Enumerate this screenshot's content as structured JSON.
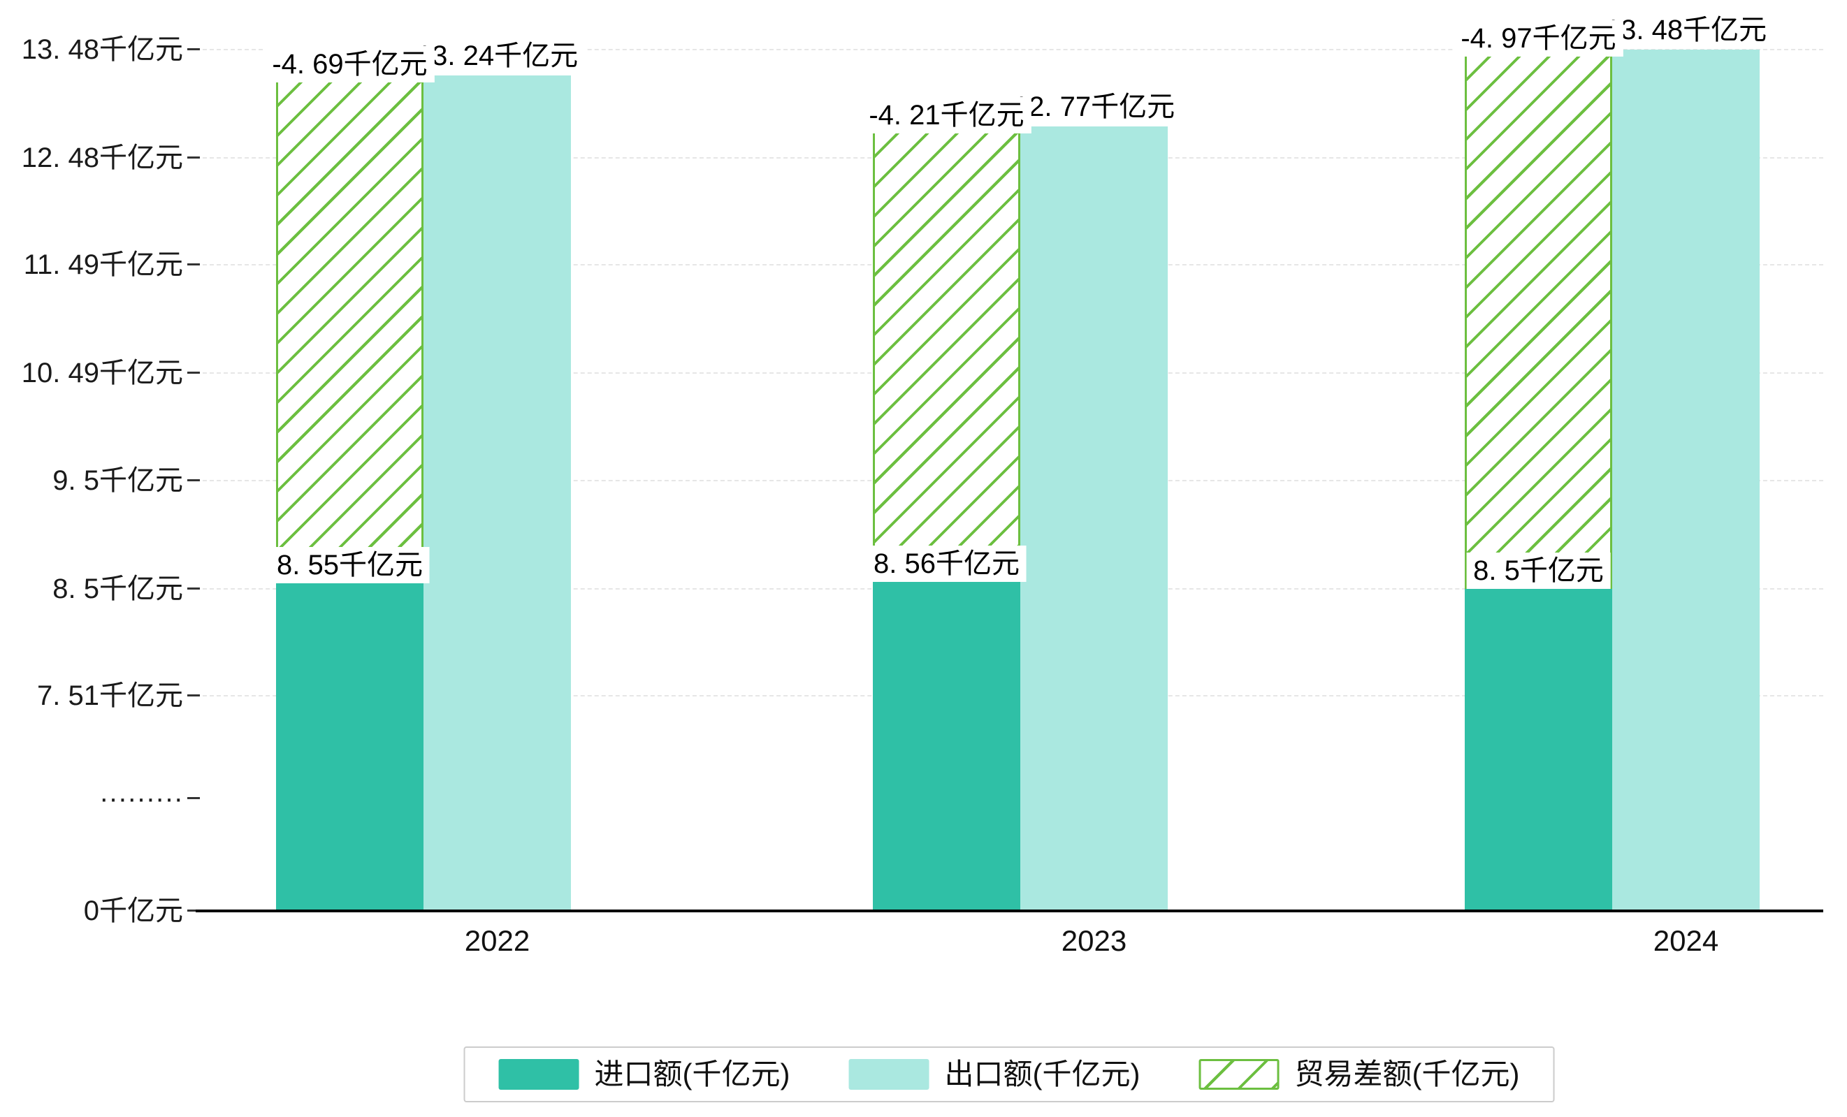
{
  "chart_data": {
    "type": "bar",
    "title": "",
    "categories": [
      "2022",
      "2023",
      "2024"
    ],
    "series": [
      {
        "name": "进口额(千亿元)",
        "type": "bar",
        "color": "#2fc0a6",
        "values": [
          8.55,
          8.56,
          8.5
        ],
        "labels": [
          "8. 55千亿元",
          "8. 56千亿元",
          "8. 5千亿元"
        ]
      },
      {
        "name": "出口额(千亿元)",
        "type": "bar",
        "color": "#aae8e0",
        "values": [
          13.24,
          12.77,
          13.48
        ],
        "labels": [
          "13. 24千亿元",
          "12. 77千亿元",
          "13. 48千亿元"
        ]
      },
      {
        "name": "贸易差额(千亿元)",
        "type": "bar",
        "style": "hatched",
        "color": "#6cbf40",
        "values": [
          -4.69,
          -4.21,
          -4.97
        ],
        "labels": [
          "-4. 69千亿元",
          "-4. 21千亿元",
          "-4. 97千亿元"
        ],
        "note": "drawn as floating hatched bar spanning from import value up to export value"
      }
    ],
    "unit": "千亿元",
    "xlabel": "",
    "ylabel": "",
    "ylim": [
      0,
      13.73
    ],
    "axis_break": {
      "between": [
        0,
        7.51
      ],
      "tick_label": "·········"
    },
    "y_ticks": [
      {
        "value": 0,
        "label": "0千亿元"
      },
      {
        "value": "break",
        "label": "·········"
      },
      {
        "value": 7.51,
        "label": "7. 51千亿元"
      },
      {
        "value": 8.5,
        "label": "8. 5千亿元"
      },
      {
        "value": 9.5,
        "label": "9. 5千亿元"
      },
      {
        "value": 10.49,
        "label": "10. 49千亿元"
      },
      {
        "value": 11.49,
        "label": "11. 49千亿元"
      },
      {
        "value": 12.48,
        "label": "12. 48千亿元"
      },
      {
        "value": 13.48,
        "label": "13. 48千亿元"
      }
    ],
    "grid": true,
    "legend_position": "bottom",
    "colors": {
      "axis_line": "#000000",
      "tick_text": "#1a1a1a",
      "gridline": "#e6e6e6",
      "label_bg": "#ffffff",
      "legend_border": "#cccccc",
      "background": "#ffffff"
    }
  }
}
